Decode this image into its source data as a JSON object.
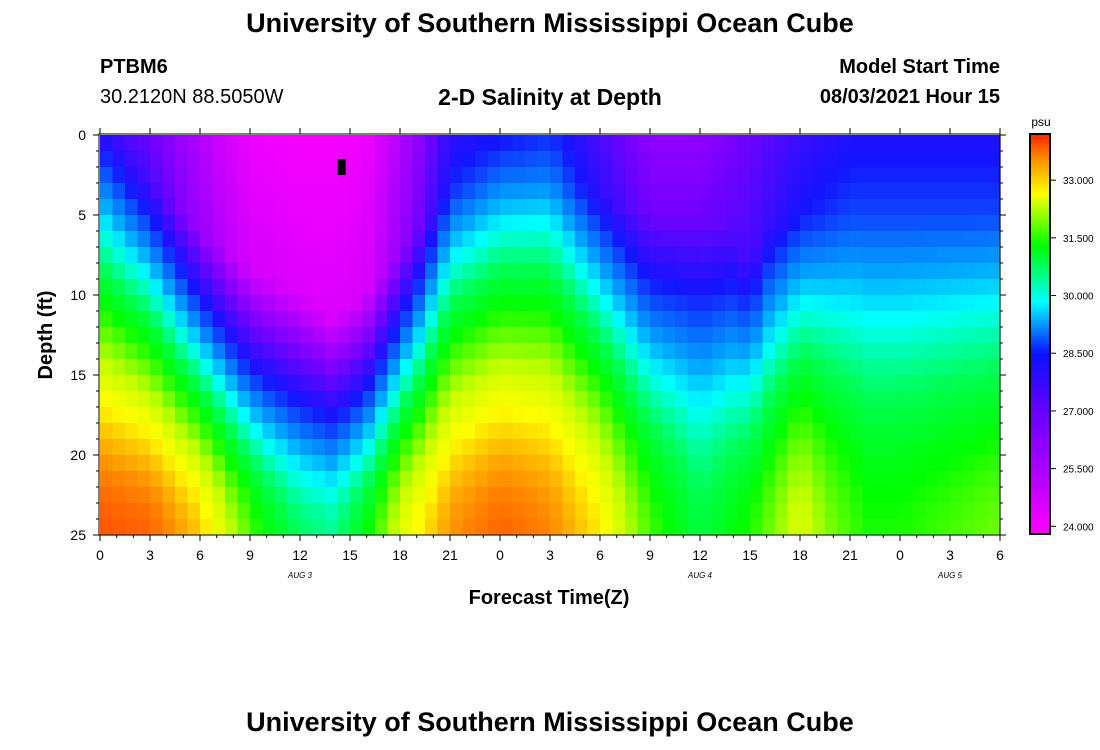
{
  "header": {
    "title": "University of Southern Mississippi Ocean Cube",
    "station": "PTBM6",
    "coords": "30.2120N  88.5050W",
    "subtitle": "2-D Salinity at Depth",
    "start_label": "Model Start Time",
    "start_value": "08/03/2021 Hour 15"
  },
  "footer": {
    "title": "University of Southern Mississippi Ocean Cube"
  },
  "colors": {
    "low": "#ff00ff",
    "purple": "#8a00ff",
    "blue": "#1428ff",
    "cyan": "#00ffff",
    "green": "#00ff00",
    "yellow": "#ffff00",
    "orange": "#ff9900",
    "high": "#ff2200"
  },
  "chart_data": {
    "type": "heatmap",
    "title": "2-D Salinity at Depth",
    "xlabel": "Forecast Time(Z)",
    "ylabel": "Depth (ft)",
    "x_range_hours": [
      0,
      54
    ],
    "ylim": [
      0,
      25
    ],
    "y_ticks": [
      "0",
      "5",
      "10",
      "15",
      "20",
      "25"
    ],
    "x_tick_labels": [
      "0",
      "3",
      "6",
      "9",
      "12",
      "15",
      "18",
      "21",
      "0",
      "3",
      "6",
      "9",
      "12",
      "15",
      "18",
      "21",
      "0",
      "3",
      "6"
    ],
    "date_labels": [
      {
        "text": "AUG 3",
        "hour": 12
      },
      {
        "text": "AUG 4",
        "hour": 36
      },
      {
        "text": "AUG 5",
        "hour": 51
      }
    ],
    "colorbar": {
      "unit": "psu",
      "ticks": [
        "24.000",
        "25.500",
        "27.000",
        "28.500",
        "30.000",
        "31.500",
        "33.000"
      ],
      "min": 23.8,
      "max": 34.2
    },
    "field_model": {
      "surface_salinity_by_hour": [
        [
          0,
          28.0
        ],
        [
          3,
          27.0
        ],
        [
          6,
          25.5
        ],
        [
          9,
          24.2
        ],
        [
          12,
          24.0
        ],
        [
          14,
          24.0
        ],
        [
          16,
          24.2
        ],
        [
          19,
          26.2
        ],
        [
          21,
          28.0
        ],
        [
          24,
          28.3
        ],
        [
          27,
          28.6
        ],
        [
          30,
          27.5
        ],
        [
          33,
          26.3
        ],
        [
          36,
          26.3
        ],
        [
          39,
          27.0
        ],
        [
          42,
          27.8
        ],
        [
          45,
          28.2
        ],
        [
          48,
          28.2
        ],
        [
          51,
          28.2
        ],
        [
          54,
          28.2
        ]
      ],
      "fresh_layer_depth_ft_by_hour": [
        [
          0,
          1.0
        ],
        [
          3,
          3.0
        ],
        [
          6,
          6.0
        ],
        [
          9,
          8.5
        ],
        [
          12,
          10.0
        ],
        [
          14,
          11.5
        ],
        [
          16,
          10.0
        ],
        [
          19,
          6.0
        ],
        [
          21,
          3.5
        ],
        [
          24,
          2.0
        ],
        [
          27,
          2.5
        ],
        [
          30,
          4.0
        ],
        [
          33,
          5.0
        ],
        [
          36,
          5.0
        ],
        [
          38,
          6.0
        ],
        [
          39,
          8.0
        ],
        [
          40,
          6.0
        ],
        [
          42,
          5.0
        ],
        [
          45,
          5.0
        ],
        [
          48,
          5.0
        ],
        [
          51,
          5.0
        ],
        [
          54,
          5.0
        ]
      ],
      "deep_salinity_ft25_by_hour": [
        [
          0,
          33.9
        ],
        [
          3,
          33.8
        ],
        [
          6,
          33.2
        ],
        [
          8,
          32.3
        ],
        [
          10,
          31.4
        ],
        [
          12,
          30.8
        ],
        [
          14,
          30.6
        ],
        [
          16,
          31.4
        ],
        [
          18,
          32.6
        ],
        [
          21,
          33.5
        ],
        [
          24,
          33.8
        ],
        [
          27,
          33.6
        ],
        [
          30,
          33.0
        ],
        [
          33,
          31.8
        ],
        [
          36,
          31.0
        ],
        [
          39,
          31.6
        ],
        [
          42,
          32.6
        ],
        [
          44,
          32.0
        ],
        [
          46,
          31.6
        ],
        [
          48,
          31.6
        ],
        [
          51,
          31.8
        ],
        [
          54,
          32.0
        ]
      ],
      "missing_cell": {
        "hour": 14.5,
        "depth_from": 1.5,
        "depth_to": 2.5
      }
    }
  }
}
